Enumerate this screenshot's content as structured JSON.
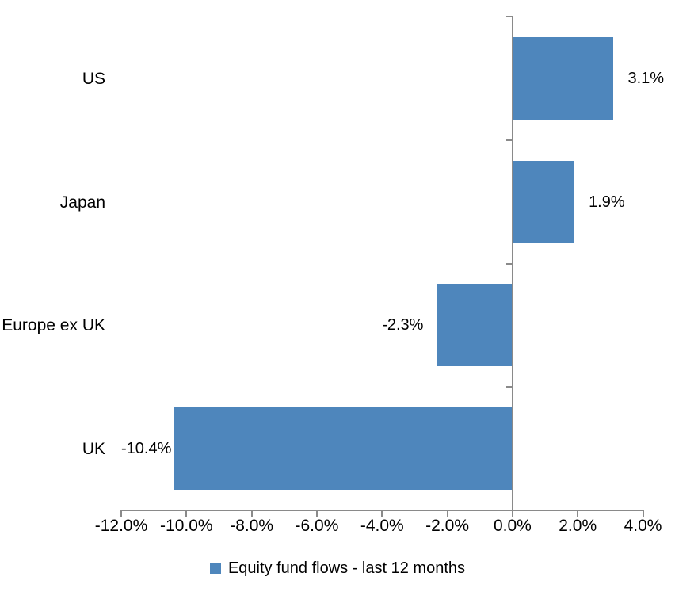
{
  "chart_data": {
    "type": "bar",
    "orientation": "horizontal",
    "title": "",
    "categories": [
      "US",
      "Japan",
      "Europe ex UK",
      "UK"
    ],
    "series": [
      {
        "name": "Equity fund flows - last 12 months",
        "values": [
          3.1,
          1.9,
          -2.3,
          -10.4
        ],
        "data_labels": [
          "3.1%",
          "1.9%",
          "-2.3%",
          "-10.4%"
        ],
        "color": "#4E86BC"
      }
    ],
    "x_axis": {
      "min": -12,
      "max": 4,
      "tick_values": [
        -12,
        -10,
        -8,
        -6,
        -4,
        -2,
        0,
        2,
        4
      ],
      "tick_labels": [
        "-12.0%",
        "-10.0%",
        "-8.0%",
        "-6.0%",
        "-4.0%",
        "-2.0%",
        "0.0%",
        "2.0%",
        "4.0%"
      ]
    },
    "legend": {
      "position": "bottom-center",
      "entries": [
        {
          "label": "Equity fund flows - last 12 months",
          "color": "#4E86BC"
        }
      ]
    },
    "colors": {
      "bar": "#4E86BC",
      "axis": "#8A8A8A",
      "text": "#000000",
      "background": "#FFFFFF"
    },
    "grid": false,
    "data_label_position": "outside-end"
  }
}
